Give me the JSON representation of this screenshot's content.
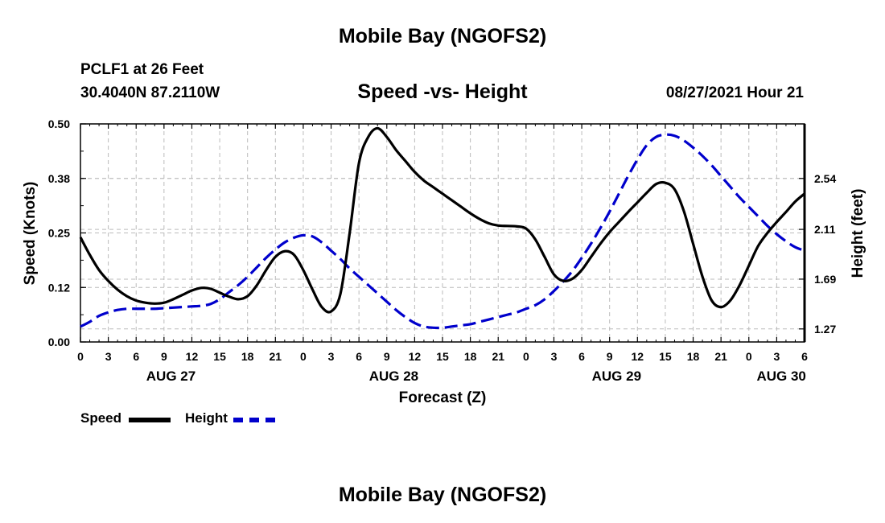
{
  "header": {
    "top_title": "Mobile Bay (NGOFS2)",
    "station": "PCLF1 at 26 Feet",
    "coords": "30.4040N  87.2110W",
    "subtitle": "Speed -vs- Height",
    "timestamp": "08/27/2021 Hour 21",
    "bottom_title": "Mobile Bay (NGOFS2)"
  },
  "legend": {
    "speed_label": "Speed",
    "height_label": "Height"
  },
  "colors": {
    "speed": "#000000",
    "height": "#0000cc",
    "grid": "#bbbbbb"
  },
  "chart_data": {
    "type": "line",
    "title": "Speed -vs- Height",
    "xlabel": "Forecast (Z)",
    "ylabel": "Speed (Knots)",
    "y2label": "Height (feet)",
    "xlim": [
      0,
      78
    ],
    "ylim": [
      0,
      0.5
    ],
    "y2lim": [
      1.16,
      3.0
    ],
    "y_ticks": [
      "0.00",
      "0.12",
      "0.25",
      "0.38",
      "0.50"
    ],
    "y_tick_values": [
      0,
      0.125,
      0.25,
      0.375,
      0.5
    ],
    "y2_ticks": [
      "1.27",
      "1.69",
      "2.11",
      "2.54"
    ],
    "y2_tick_values": [
      1.27,
      1.69,
      2.11,
      2.54
    ],
    "x_tick_labels": [
      "0",
      "3",
      "6",
      "9",
      "12",
      "15",
      "18",
      "21",
      "0",
      "3",
      "6",
      "9",
      "12",
      "15",
      "18",
      "21",
      "0",
      "3",
      "6",
      "9",
      "12",
      "15",
      "18",
      "21",
      "0",
      "3",
      "6"
    ],
    "day_labels": [
      {
        "label": "AUG 27",
        "hour": 9.75
      },
      {
        "label": "AUG 28",
        "hour": 33.75
      },
      {
        "label": "AUG 29",
        "hour": 57.75
      },
      {
        "label": "AUG 30",
        "hour": 75.5
      }
    ],
    "series": [
      {
        "name": "Speed",
        "axis": "left",
        "x": [
          0,
          1,
          2,
          3,
          4,
          5,
          6,
          7,
          8,
          9,
          10,
          11,
          12,
          13,
          14,
          15,
          16,
          17,
          18,
          19,
          20,
          21,
          22,
          23,
          24,
          25,
          26,
          27,
          28,
          29,
          30,
          31,
          32,
          33,
          34,
          35,
          36,
          37,
          38,
          39,
          40,
          41,
          42,
          43,
          44,
          45,
          46,
          47,
          48,
          49,
          50,
          51,
          52,
          53,
          54,
          55,
          56,
          57,
          58,
          59,
          60,
          61,
          62,
          63,
          64,
          65,
          66,
          67,
          68,
          69,
          70,
          71,
          72,
          73,
          74,
          75,
          76,
          77,
          78
        ],
        "values": [
          0.24,
          0.2,
          0.165,
          0.14,
          0.12,
          0.105,
          0.095,
          0.09,
          0.088,
          0.09,
          0.098,
          0.108,
          0.118,
          0.124,
          0.122,
          0.113,
          0.104,
          0.098,
          0.105,
          0.13,
          0.165,
          0.195,
          0.208,
          0.2,
          0.165,
          0.12,
          0.08,
          0.07,
          0.11,
          0.25,
          0.41,
          0.47,
          0.49,
          0.47,
          0.44,
          0.415,
          0.39,
          0.37,
          0.355,
          0.34,
          0.325,
          0.31,
          0.295,
          0.282,
          0.272,
          0.267,
          0.266,
          0.265,
          0.26,
          0.235,
          0.195,
          0.155,
          0.14,
          0.145,
          0.165,
          0.195,
          0.225,
          0.252,
          0.275,
          0.298,
          0.32,
          0.342,
          0.362,
          0.365,
          0.35,
          0.3,
          0.225,
          0.15,
          0.095,
          0.08,
          0.095,
          0.13,
          0.175,
          0.22,
          0.25,
          0.275,
          0.298,
          0.322,
          0.34
        ]
      },
      {
        "name": "Height",
        "axis": "right",
        "x": [
          0,
          1,
          2,
          3,
          4,
          5,
          6,
          7,
          8,
          9,
          10,
          11,
          12,
          13,
          14,
          15,
          16,
          17,
          18,
          19,
          20,
          21,
          22,
          23,
          24,
          25,
          26,
          27,
          28,
          29,
          30,
          31,
          32,
          33,
          34,
          35,
          36,
          37,
          38,
          39,
          40,
          41,
          42,
          43,
          44,
          45,
          46,
          47,
          48,
          49,
          50,
          51,
          52,
          53,
          54,
          55,
          56,
          57,
          58,
          59,
          60,
          61,
          62,
          63,
          64,
          65,
          66,
          67,
          68,
          69,
          70,
          71,
          72,
          73,
          74,
          75,
          76,
          77,
          78
        ],
        "values": [
          1.29,
          1.33,
          1.38,
          1.41,
          1.43,
          1.44,
          1.44,
          1.44,
          1.44,
          1.445,
          1.45,
          1.455,
          1.46,
          1.465,
          1.48,
          1.52,
          1.58,
          1.64,
          1.71,
          1.79,
          1.87,
          1.94,
          2.0,
          2.04,
          2.06,
          2.05,
          2.0,
          1.93,
          1.86,
          1.78,
          1.71,
          1.64,
          1.57,
          1.5,
          1.43,
          1.37,
          1.32,
          1.29,
          1.28,
          1.28,
          1.29,
          1.3,
          1.31,
          1.33,
          1.35,
          1.37,
          1.39,
          1.41,
          1.44,
          1.47,
          1.52,
          1.59,
          1.67,
          1.76,
          1.87,
          1.99,
          2.12,
          2.26,
          2.41,
          2.56,
          2.7,
          2.82,
          2.89,
          2.91,
          2.9,
          2.86,
          2.8,
          2.73,
          2.65,
          2.56,
          2.47,
          2.38,
          2.3,
          2.22,
          2.14,
          2.07,
          2.01,
          1.96,
          1.93
        ]
      }
    ]
  }
}
